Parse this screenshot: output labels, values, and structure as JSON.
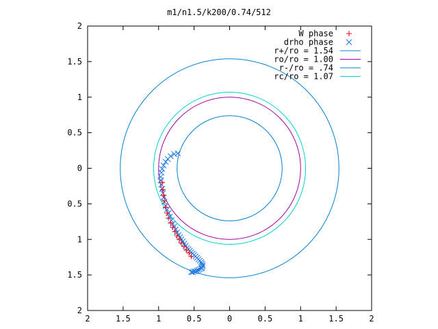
{
  "chart_data": {
    "type": "scatter",
    "title": "m1/n1.5/k200/0.74/512",
    "xlim": [
      -2,
      2
    ],
    "ylim": [
      -2,
      2
    ],
    "x_ticks": [
      -2,
      -1.5,
      -1,
      -0.5,
      0,
      0.5,
      1,
      1.5,
      2
    ],
    "y_ticks": [
      -2,
      -1.5,
      -1,
      -0.5,
      0,
      0.5,
      1,
      1.5,
      2
    ],
    "x_tick_labels": [
      "2",
      "1.5",
      "1",
      "0.5",
      "0",
      "0.5",
      "1",
      "1.5",
      "2"
    ],
    "y_tick_labels": [
      "2",
      "1.5",
      "1",
      "0.5",
      "0",
      "0.5",
      "1",
      "1.5",
      "2"
    ],
    "grid": false,
    "legend_position": "top-right",
    "series": [
      {
        "name": "W phase",
        "kind": "points",
        "marker": "plus",
        "color": "#ff0000",
        "x": [
          -0.95,
          -0.94,
          -0.93,
          -0.92,
          -0.9,
          -0.88,
          -0.86,
          -0.83,
          -0.8,
          -0.77,
          -0.74,
          -0.71,
          -0.68,
          -0.64,
          -0.61,
          -0.57,
          -0.54
        ],
        "y": [
          -0.2,
          -0.3,
          -0.38,
          -0.46,
          -0.55,
          -0.63,
          -0.7,
          -0.77,
          -0.83,
          -0.89,
          -0.95,
          -1.0,
          -1.05,
          -1.1,
          -1.15,
          -1.19,
          -1.24
        ]
      },
      {
        "name": "drho phase",
        "kind": "points",
        "marker": "cross",
        "color": "#1e78e6",
        "x": [
          -0.73,
          -0.78,
          -0.83,
          -0.87,
          -0.9,
          -0.93,
          -0.95,
          -0.96,
          -0.97,
          -0.97,
          -0.96,
          -0.95,
          -0.94,
          -0.93,
          -0.92,
          -0.9,
          -0.88,
          -0.86,
          -0.84,
          -0.82,
          -0.8,
          -0.78,
          -0.76,
          -0.74,
          -0.72,
          -0.7,
          -0.68,
          -0.66,
          -0.64,
          -0.62,
          -0.6,
          -0.58,
          -0.56,
          -0.54,
          -0.52,
          -0.5,
          -0.48,
          -0.46,
          -0.44,
          -0.42,
          -0.4,
          -0.39,
          -0.38,
          -0.38,
          -0.39,
          -0.4,
          -0.42,
          -0.44,
          -0.46,
          -0.48,
          -0.5,
          -0.52,
          -0.54
        ],
        "y": [
          0.21,
          0.2,
          0.17,
          0.13,
          0.09,
          0.04,
          -0.01,
          -0.06,
          -0.12,
          -0.17,
          -0.23,
          -0.29,
          -0.35,
          -0.41,
          -0.47,
          -0.53,
          -0.58,
          -0.63,
          -0.68,
          -0.73,
          -0.78,
          -0.82,
          -0.86,
          -0.9,
          -0.94,
          -0.97,
          -1.0,
          -1.03,
          -1.06,
          -1.09,
          -1.12,
          -1.14,
          -1.16,
          -1.18,
          -1.2,
          -1.22,
          -1.24,
          -1.26,
          -1.28,
          -1.3,
          -1.32,
          -1.34,
          -1.36,
          -1.38,
          -1.4,
          -1.41,
          -1.42,
          -1.43,
          -1.44,
          -1.45,
          -1.45,
          -1.46,
          -1.46
        ]
      },
      {
        "name": "r+/ro = 1.54",
        "kind": "circle",
        "radius": 1.54,
        "color": "#0080d0"
      },
      {
        "name": "ro/ro = 1.00",
        "kind": "circle",
        "radius": 1.0,
        "color": "#a000a0"
      },
      {
        "name": "r-/ro = .74",
        "kind": "circle",
        "radius": 0.74,
        "color": "#0080d0"
      },
      {
        "name": "rc/ro = 1.07",
        "kind": "circle",
        "radius": 1.07,
        "color": "#00d0d0"
      }
    ]
  }
}
